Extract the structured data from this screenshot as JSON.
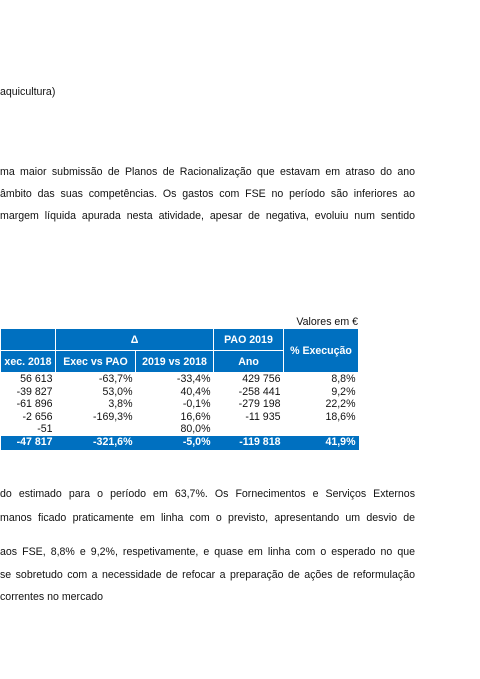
{
  "heading": "aquicultura)",
  "paragraph1": [
    "ma maior submissão de Planos de Racionalização que estavam em atraso do ano",
    "âmbito das suas competências. Os gastos com FSE no período são inferiores ao",
    "margem líquida apurada nesta atividade, apesar de negativa, evoluiu num sentido"
  ],
  "table": {
    "unit_note": "Valores em €",
    "header_row1": {
      "delta": "Δ",
      "pao": "PAO 2019",
      "execution": "% Execução"
    },
    "header_row2": [
      "xec. 2018",
      "Exec vs PAO",
      "2019 vs 2018",
      "Ano"
    ],
    "rows": [
      [
        "56 613",
        "-63,7%",
        "-33,4%",
        "429 756",
        "8,8%"
      ],
      [
        "-39 827",
        "53,0%",
        "40,4%",
        "-258 441",
        "9,2%"
      ],
      [
        "-61 896",
        "3,8%",
        "-0,1%",
        "-279 198",
        "22,2%"
      ],
      [
        "-2 656",
        "-169,3%",
        "16,6%",
        "-11 935",
        "18,6%"
      ],
      [
        "-51",
        null,
        "80,0%",
        null,
        null
      ]
    ],
    "total": [
      "-47 817",
      "-321,6%",
      "-5,0%",
      "-119 818",
      "41,9%"
    ]
  },
  "paragraph2": [
    "do estimado para o período em 63,7%. Os Fornecimentos e Serviços Externos",
    "manos ficado praticamente em linha com o previsto, apresentando um desvio de"
  ],
  "paragraph3": [
    "aos FSE, 8,8% e 9,2%, respetivamente, e quase em linha com o esperado no que",
    "se sobretudo com a necessidade de refocar a preparação de ações de reformulação",
    "correntes no mercado"
  ]
}
